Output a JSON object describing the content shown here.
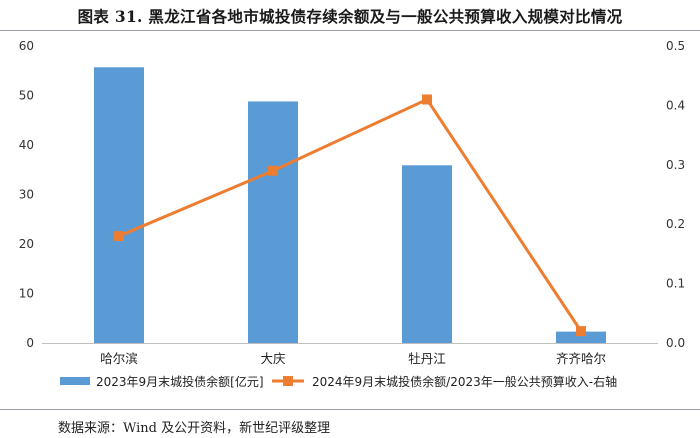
{
  "title": "图表 31.  黑龙江省各地市城投债存续余额及与一般公共预算收入规模对比情况",
  "source": "数据来源：Wind 及公开资料，新世纪评级整理",
  "chart_data": {
    "type": "bar",
    "categories": [
      "哈尔滨",
      "大庆",
      "牡丹江",
      "齐齐哈尔"
    ],
    "series": [
      {
        "name": "2023年9月末城投债余额[亿元]",
        "type": "bar",
        "axis": "left",
        "color": "#5b9bd5",
        "values": [
          55.7,
          48.8,
          35.9,
          2.3
        ]
      },
      {
        "name": "2024年9月末城投债余额/2023年一般公共预算收入-右轴",
        "type": "line",
        "axis": "right",
        "color": "#ed7d31",
        "values": [
          0.18,
          0.29,
          0.41,
          0.02
        ]
      }
    ],
    "y_left": {
      "ylim": [
        0,
        60
      ],
      "ticks": [
        "0",
        "10",
        "20",
        "30",
        "40",
        "50",
        "60"
      ]
    },
    "y_right": {
      "ylim": [
        0,
        0.5
      ],
      "ticks": [
        "0.0",
        "0.1",
        "0.2",
        "0.3",
        "0.4",
        "0.5"
      ]
    },
    "grid": false,
    "legend": "bottom"
  }
}
